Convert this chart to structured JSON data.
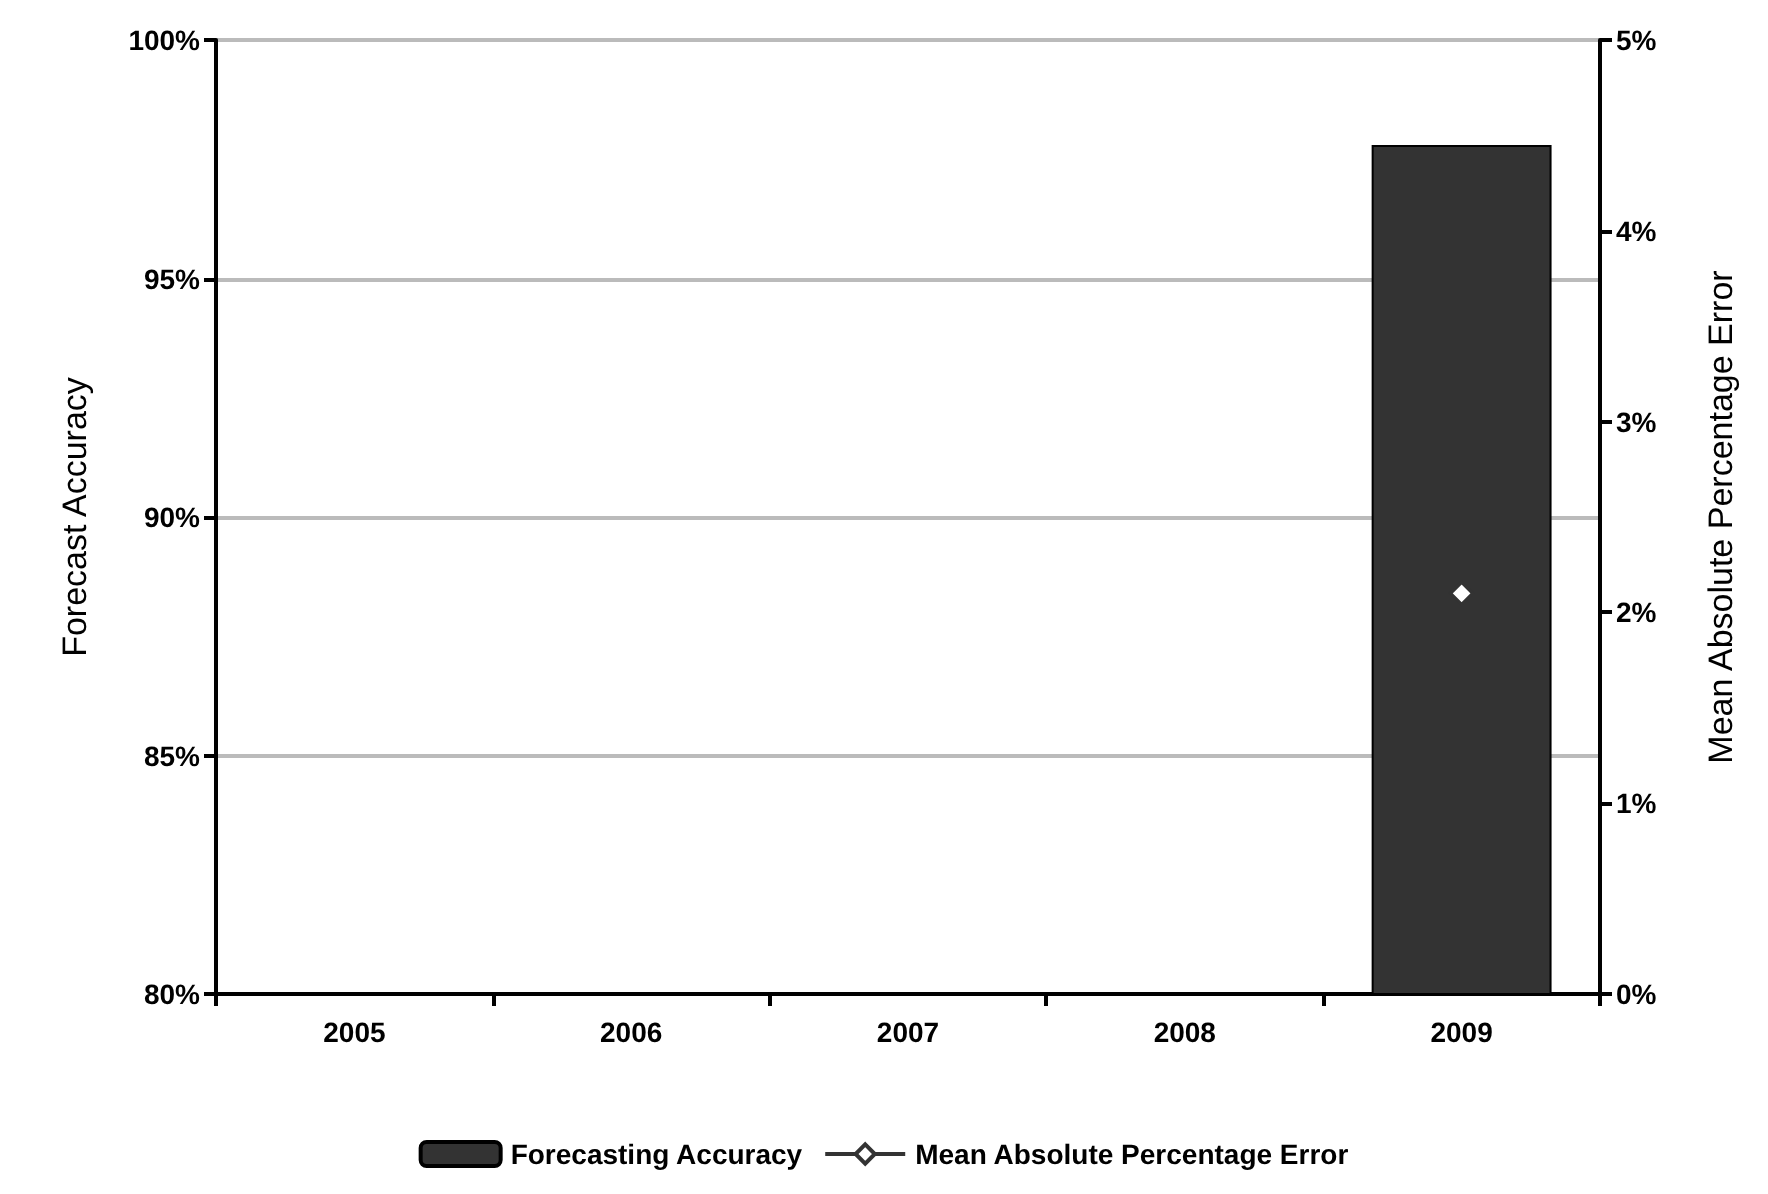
{
  "chart_data": {
    "type": "bar",
    "categories": [
      "2005",
      "2006",
      "2007",
      "2008",
      "2009"
    ],
    "ylabel": "Forecast Accuracy",
    "y2label": "Mean Absolute Percentage Error",
    "series": [
      {
        "name": "Forecasting Accuracy",
        "color": "#333333",
        "values": [
          null,
          null,
          null,
          null,
          97.8
        ]
      },
      {
        "name": "Mean Absolute Percentage Error",
        "type": "line",
        "axis": "y2",
        "color": "#333333",
        "marker": "diamond",
        "line_style": "solid",
        "values": [
          null,
          null,
          null,
          null,
          2.1
        ]
      }
    ],
    "ylim": [
      80,
      100
    ],
    "yticks": [
      {
        "value": 80,
        "label": "80%"
      },
      {
        "value": 85,
        "label": "85%"
      },
      {
        "value": 90,
        "label": "90%"
      },
      {
        "value": 95,
        "label": "95%"
      },
      {
        "value": 100,
        "label": "100%"
      }
    ],
    "y2lim": [
      0,
      5
    ],
    "y2ticks": [
      {
        "value": 0,
        "label": "0%"
      },
      {
        "value": 1,
        "label": "1%"
      },
      {
        "value": 2,
        "label": "2%"
      },
      {
        "value": 3,
        "label": "3%"
      },
      {
        "value": 4,
        "label": "4%"
      },
      {
        "value": 5,
        "label": "5%"
      }
    ],
    "grid": "y",
    "legend": "bottom"
  }
}
